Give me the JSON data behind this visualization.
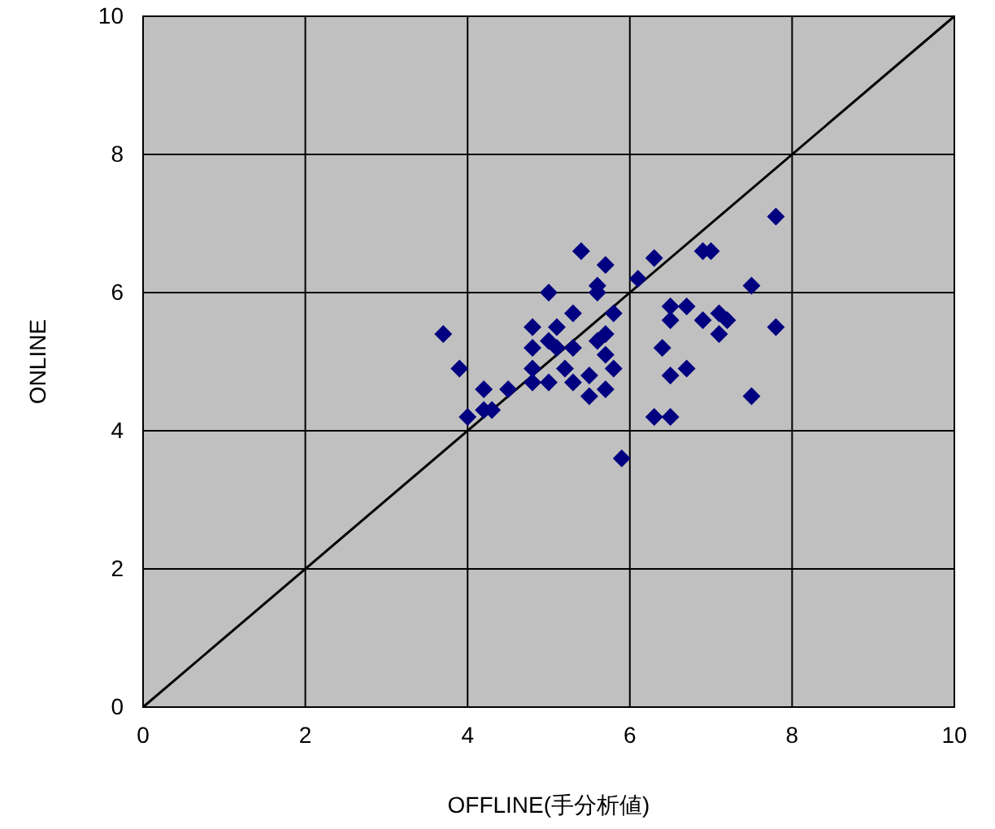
{
  "chart_data": {
    "type": "scatter",
    "xlabel": "OFFLINE(手分析値)",
    "ylabel": "ONLINE",
    "xlim": [
      0,
      10
    ],
    "ylim": [
      0,
      10
    ],
    "xticks": [
      0,
      2,
      4,
      6,
      8,
      10
    ],
    "yticks": [
      0,
      2,
      4,
      6,
      8,
      10
    ],
    "grid": true,
    "marker": "diamond",
    "series": [
      {
        "color": "#000080",
        "x": [
          3.7,
          3.9,
          4.0,
          4.2,
          4.2,
          4.3,
          4.5,
          4.8,
          4.8,
          4.8,
          4.8,
          5.0,
          5.0,
          5.0,
          5.1,
          5.1,
          5.2,
          5.3,
          5.3,
          5.3,
          5.4,
          5.5,
          5.5,
          5.6,
          5.6,
          5.6,
          5.7,
          5.7,
          5.7,
          5.7,
          5.8,
          5.8,
          5.9,
          6.1,
          6.3,
          6.3,
          6.4,
          6.5,
          6.5,
          6.5,
          6.5,
          6.7,
          6.7,
          6.9,
          7.0,
          6.9,
          7.1,
          7.1,
          7.2,
          7.5,
          7.5,
          7.8,
          7.8
        ],
        "values": [
          5.4,
          4.9,
          4.2,
          4.6,
          4.3,
          4.3,
          4.6,
          5.5,
          5.2,
          4.9,
          4.7,
          6.0,
          4.7,
          5.3,
          5.2,
          5.5,
          4.9,
          4.7,
          5.7,
          5.2,
          6.6,
          4.8,
          4.5,
          6.0,
          5.3,
          6.1,
          6.4,
          5.4,
          5.1,
          4.6,
          4.9,
          5.7,
          3.6,
          6.2,
          6.5,
          4.2,
          5.2,
          5.8,
          5.6,
          4.8,
          4.2,
          4.9,
          5.8,
          6.6,
          6.6,
          5.6,
          5.7,
          5.4,
          5.6,
          6.1,
          4.5,
          7.1,
          5.5
        ]
      },
      {
        "type": "line",
        "color": "#000000",
        "x": [
          0,
          10
        ],
        "values": [
          0,
          10
        ],
        "marker": "none"
      }
    ]
  }
}
